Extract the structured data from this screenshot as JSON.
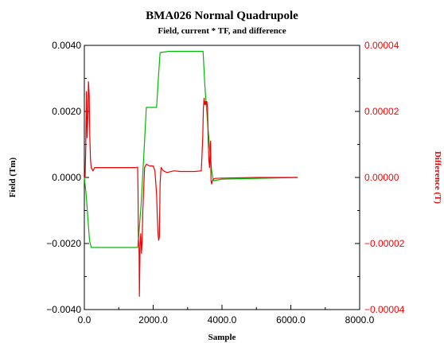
{
  "chart_data": {
    "type": "line",
    "title": "BMA026 Normal Quadrupole",
    "subtitle": "Field, current * TF, and difference",
    "xlabel": "Sample",
    "ylabel_left": "Field (Tm)",
    "ylabel_right": "Difference (T)",
    "xlim": [
      0,
      8000
    ],
    "ylim_left": [
      -0.004,
      0.004
    ],
    "ylim_right": [
      -4e-05,
      4e-05
    ],
    "x_ticks": [
      "0.0",
      "2000.0",
      "4000.0",
      "6000.0",
      "8000.0"
    ],
    "y_left_ticks": [
      "−0.0040",
      "−0.0020",
      "0.0000",
      "0.0020",
      "0.0040"
    ],
    "y_right_ticks": [
      "−0.00004",
      "−0.00002",
      "0.00000",
      "0.00002",
      "0.00004"
    ],
    "grid": false,
    "colors": {
      "field": "#00bb00",
      "difference": "#ee0000",
      "right_axis": "#ff0000",
      "text": "#000000"
    },
    "series": [
      {
        "axis": "left",
        "color": "#00bb00",
        "x": [
          0,
          50,
          150,
          200,
          1550,
          1600,
          1650,
          1750,
          1800,
          2100,
          2150,
          2200,
          2450,
          3450,
          3500,
          3600,
          3700,
          3750,
          4000,
          6200
        ],
        "y": [
          0.0,
          -0.0005,
          -0.0019,
          -0.00212,
          -0.00212,
          -0.0015,
          -0.0008,
          0.0011,
          0.00212,
          0.00212,
          0.003,
          0.00378,
          0.00382,
          0.00382,
          0.0028,
          0.0014,
          0.0002,
          -0.0001,
          -5e-05,
          0.0
        ]
      },
      {
        "axis": "right",
        "color": "#ee0000",
        "x": [
          0,
          20,
          40,
          60,
          80,
          100,
          120,
          140,
          160,
          180,
          200,
          250,
          300,
          600,
          900,
          1200,
          1500,
          1550,
          1560,
          1570,
          1580,
          1590,
          1600,
          1620,
          1640,
          1660,
          1680,
          1700,
          1750,
          1800,
          1900,
          2000,
          2050,
          2100,
          2120,
          2140,
          2160,
          2180,
          2200,
          2230,
          2260,
          2300,
          2400,
          2600,
          2800,
          3000,
          3200,
          3400,
          3440,
          3460,
          3480,
          3500,
          3520,
          3540,
          3560,
          3580,
          3600,
          3620,
          3640,
          3660,
          3670,
          3680,
          3700,
          3720,
          3750,
          3800,
          4000,
          5000,
          6200
        ],
        "y": [
          0.0,
          0.0,
          8e-06,
          2.6e-05,
          1.2e-05,
          1.8e-05,
          2.9e-05,
          2.5e-05,
          1.2e-05,
          5e-06,
          3e-06,
          2e-06,
          3e-06,
          3e-06,
          3e-06,
          3e-06,
          3e-06,
          3.1e-06,
          -5e-06,
          -1.8e-05,
          -2e-05,
          -2.2e-05,
          -3.6e-05,
          -2e-05,
          -1.7e-05,
          -2.3e-05,
          -1.9e-05,
          -1e-05,
          3e-06,
          4e-06,
          3.5e-06,
          3.5e-06,
          2e-06,
          -5e-06,
          -1.2e-05,
          -1.7e-05,
          -1.9e-05,
          -1.8e-05,
          -2e-06,
          3e-06,
          2.5e-06,
          2e-06,
          1.5e-06,
          2e-06,
          1.8e-06,
          1.8e-06,
          1.8e-06,
          2e-06,
          1.2e-05,
          2.1e-05,
          2.4e-05,
          2.2e-05,
          2.3e-05,
          2.2e-05,
          2.3e-05,
          2.1e-05,
          1.1e-05,
          5e-06,
          3e-06,
          8e-06,
          1.1e-05,
          -1e-06,
          -2e-06,
          -1e-06,
          -5e-07,
          -3e-07,
          -2e-07,
          0.0,
          0.0
        ]
      }
    ]
  }
}
